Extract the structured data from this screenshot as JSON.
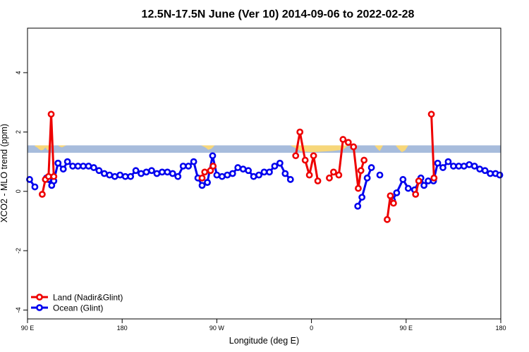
{
  "chart_data": {
    "type": "line",
    "title": "12.5N-17.5N June (Ver 10)   2014-09-06 to 2022-02-28",
    "xlabel": "Longitude (deg E)",
    "ylabel": "XCO2 - MLO trend (ppm)",
    "xlim": [
      90,
      540
    ],
    "ylim": [
      -4.3,
      5.5
    ],
    "x_ticks": [
      {
        "value": 90,
        "label": "90 E"
      },
      {
        "value": 180,
        "label": "180"
      },
      {
        "value": 270,
        "label": "90 W"
      },
      {
        "value": 360,
        "label": "0"
      },
      {
        "value": 450,
        "label": "90 E"
      },
      {
        "value": 540,
        "label": "180"
      }
    ],
    "y_ticks": [
      {
        "value": -4,
        "label": "-4"
      },
      {
        "value": -2,
        "label": "-2"
      },
      {
        "value": 0,
        "label": "0"
      },
      {
        "value": 2,
        "label": "2"
      },
      {
        "value": 4,
        "label": "4"
      }
    ],
    "grid": false,
    "legend_position": "bottom-left",
    "land_band": {
      "y_range": [
        1.3,
        1.55
      ],
      "band_color": "#A7BCDC",
      "land_color": "#F7D77A",
      "land_segments": [
        {
          "x": [
            97,
            99,
            101,
            103,
            105,
            107,
            109,
            111,
            113
          ],
          "y": [
            1.52,
            1.48,
            1.42,
            1.38,
            1.4,
            1.48,
            1.38,
            1.42,
            1.55
          ]
        },
        {
          "x": [
            119,
            121,
            123,
            125,
            127
          ],
          "y": [
            1.55,
            1.5,
            1.48,
            1.52,
            1.55
          ]
        },
        {
          "x": [
            255,
            259,
            262,
            265,
            268
          ],
          "y": [
            1.55,
            1.48,
            1.4,
            1.44,
            1.55
          ]
        },
        {
          "x": [
            340,
            345,
            350,
            360,
            370,
            380,
            390,
            395
          ],
          "y": [
            1.55,
            1.45,
            1.35,
            1.32,
            1.34,
            1.36,
            1.4,
            1.55
          ]
        },
        {
          "x": [
            420,
            423,
            425,
            428
          ],
          "y": [
            1.55,
            1.42,
            1.36,
            1.55
          ]
        },
        {
          "x": [
            440,
            443,
            446,
            449,
            452
          ],
          "y": [
            1.55,
            1.42,
            1.32,
            1.38,
            1.55
          ]
        }
      ]
    },
    "series": [
      {
        "name": "Land (Nadir&Glint)",
        "color": "#EE0000",
        "segments": [
          {
            "x": [
              104,
              107,
              110,
              112.5,
              115
            ],
            "y": [
              -0.1,
              0.4,
              0.5,
              2.6,
              0.5
            ]
          },
          {
            "x": [
              256,
              258.5
            ],
            "y": [
              0.45,
              0.65
            ]
          },
          {
            "x": [
              264,
              266.5
            ],
            "y": [
              0.7,
              0.85
            ]
          },
          {
            "x": [
              345,
              349,
              354,
              358,
              362,
              366
            ],
            "y": [
              1.2,
              2.0,
              1.05,
              0.55,
              1.2,
              0.35
            ]
          },
          {
            "x": [
              377,
              381,
              386,
              390,
              395,
              400,
              404.5,
              407,
              410
            ],
            "y": [
              0.45,
              0.65,
              0.55,
              1.75,
              1.65,
              1.5,
              0.1,
              0.7,
              1.05
            ]
          },
          {
            "x": [
              432,
              435,
              438
            ],
            "y": [
              -0.95,
              -0.15,
              -0.4
            ]
          },
          {
            "x": [
              459,
              462
            ],
            "y": [
              -0.1,
              0.35
            ]
          },
          {
            "x": [
              474,
              476.5
            ],
            "y": [
              2.6,
              0.45
            ]
          }
        ]
      },
      {
        "name": "Ocean (Glint)",
        "color": "#0000EE",
        "segments": [
          {
            "x": [
              92,
              97
            ],
            "y": [
              0.4,
              0.15
            ]
          },
          {
            "x": [
              110,
              115,
              119
            ],
            "y": [
              0.4,
              0.35,
              0.95
            ]
          },
          {
            "x": [
              108,
              113
            ],
            "y": [
              0.45,
              0.2
            ]
          },
          {
            "x": [
              119,
              124,
              128,
              133,
              138,
              143,
              148,
              153,
              158,
              163,
              168,
              173,
              178,
              183,
              188,
              193,
              198,
              203,
              208,
              213,
              218,
              223,
              228,
              233,
              238,
              243,
              248,
              252,
              256,
              261
            ],
            "y": [
              0.95,
              0.75,
              1.0,
              0.85,
              0.85,
              0.85,
              0.85,
              0.8,
              0.7,
              0.6,
              0.55,
              0.5,
              0.55,
              0.5,
              0.5,
              0.7,
              0.6,
              0.65,
              0.7,
              0.6,
              0.65,
              0.65,
              0.6,
              0.5,
              0.85,
              0.85,
              1.0,
              0.45,
              0.2,
              0.3
            ]
          },
          {
            "x": [
              261,
              266,
              270,
              275,
              280,
              285,
              290,
              295,
              300,
              305,
              310,
              315,
              320,
              325,
              330,
              335,
              340
            ],
            "y": [
              0.3,
              1.2,
              0.55,
              0.5,
              0.55,
              0.6,
              0.8,
              0.75,
              0.7,
              0.5,
              0.55,
              0.65,
              0.65,
              0.85,
              0.95,
              0.6,
              0.4
            ]
          },
          {
            "x": [
              404,
              408,
              413,
              417
            ],
            "y": [
              -0.5,
              -0.2,
              0.45,
              0.8
            ]
          },
          {
            "x": [
              425
            ],
            "y": [
              0.55
            ]
          },
          {
            "x": [
              437,
              441,
              447,
              452
            ],
            "y": [
              -0.3,
              -0.05,
              0.4,
              0.1
            ]
          },
          {
            "x": [
              458,
              464,
              467,
              471,
              476,
              480,
              485,
              490,
              495,
              500,
              505,
              510,
              515,
              520,
              525,
              530,
              535,
              539
            ],
            "y": [
              0.05,
              0.45,
              0.2,
              0.35,
              0.35,
              0.95,
              0.8,
              1.0,
              0.85,
              0.85,
              0.85,
              0.9,
              0.85,
              0.75,
              0.7,
              0.6,
              0.6,
              0.55
            ]
          }
        ]
      }
    ]
  }
}
